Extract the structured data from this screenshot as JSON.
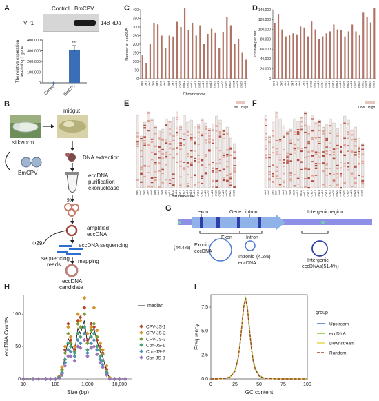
{
  "panels": {
    "a": "A",
    "b": "B",
    "c": "C",
    "d": "D",
    "e": "E",
    "f": "F",
    "g": "G",
    "h": "H",
    "i": "I"
  },
  "panel_a": {
    "blot_label": "VP1",
    "lanes": [
      "Control",
      "BmCPV"
    ],
    "size_marker": "148 kDa",
    "chart_data": {
      "type": "bar",
      "categories": [
        "Control",
        "BmCPV"
      ],
      "values": [
        0,
        310000
      ],
      "ylabel": "The relative expression level of vp1 gene",
      "ylim": [
        0,
        400000
      ],
      "yticks": [
        "0",
        "100,000",
        "200,000",
        "300,000",
        "400,000"
      ],
      "significance": "***",
      "bar_color": "#3a6fb7"
    }
  },
  "panel_b": {
    "silkworm": "silkworm",
    "virus": "BmCPV",
    "midgut": "midgut",
    "step1": "DNA extraction",
    "step2a": "eccDNA",
    "step2b": "purification",
    "step2c": "exonuclease",
    "step3a": "amplified",
    "step3b": "eccDNA",
    "phi": "Φ29",
    "step4": "eccDNA sequencing",
    "reads_a": "sequencing",
    "reads_b": "reads",
    "mapping": "mapping",
    "cand_a": "eccDNA",
    "cand_b": "candidate"
  },
  "panel_c": {
    "chart_data": {
      "type": "bar",
      "ylabel": "Number of eccDNA",
      "xlabel": "Chromosome",
      "ylim": [
        0,
        400
      ],
      "yticks": [
        "0",
        "50",
        "100",
        "150",
        "200",
        "250",
        "300",
        "350",
        "400"
      ],
      "categories": [
        "chr1",
        "chr2",
        "chr3",
        "chr4",
        "chr5",
        "chr6",
        "chr7",
        "chr8",
        "chr9",
        "chr10",
        "chr11",
        "chr12",
        "chr13",
        "chr14",
        "chr15",
        "chr16",
        "chr17",
        "chr18",
        "chr19",
        "chr20",
        "chr21",
        "chr22",
        "chr23",
        "chr24",
        "chr25",
        "chr26",
        "chr27",
        "chr28"
      ],
      "values": [
        140,
        90,
        200,
        320,
        315,
        250,
        180,
        250,
        245,
        330,
        300,
        410,
        280,
        320,
        250,
        310,
        200,
        260,
        290,
        265,
        180,
        270,
        360,
        310,
        200,
        230,
        150,
        110
      ]
    }
  },
  "panel_d": {
    "chart_data": {
      "type": "bar",
      "ylabel": "eccDNA per Mb",
      "ylim": [
        0,
        140000
      ],
      "yticks": [
        "0",
        "20,000",
        "40,000",
        "60,000",
        "80,000",
        "100,000",
        "120,000",
        "140,000"
      ],
      "categories": [
        "chr1",
        "chr2",
        "chr3",
        "chr4",
        "chr5",
        "chr6",
        "chr7",
        "chr8",
        "chr9",
        "chr10",
        "chr11",
        "chr12",
        "chr13",
        "chr14",
        "chr15",
        "chr16",
        "chr17",
        "chr18",
        "chr19",
        "chr20",
        "chr21",
        "chr22",
        "chr23",
        "chr24",
        "chr25",
        "chr26",
        "chr27",
        "chr28"
      ],
      "values": [
        112000,
        130000,
        100000,
        86000,
        88000,
        92000,
        90000,
        106000,
        104000,
        86000,
        116000,
        100000,
        80000,
        86000,
        92000,
        96000,
        110000,
        100000,
        98000,
        86000,
        96000,
        110000,
        96000,
        88000,
        134000,
        126000,
        114000,
        146000
      ]
    }
  },
  "panel_e": {
    "xlabel": "Chromosome",
    "legend_low": "Low",
    "legend_high": "High"
  },
  "panel_f": {
    "legend_low": "Low",
    "legend_high": "High"
  },
  "panel_g": {
    "exon": "exon",
    "gene": "Gene",
    "intron": "intron",
    "intergenic": "Intergenic region",
    "exon2": "Exon",
    "intron2": "Intron",
    "exonic_pct": "(44.4%)",
    "exonic_a": "Exonic",
    "exonic_b": "eccDNA",
    "intronic_a": "Intronic",
    "intronic_b": "eccDNA",
    "intronic_pct": "(4.2%)",
    "intergenic_a": "Intergenic",
    "intergenic_b": "eccDNAs(51.4%)"
  },
  "panel_h": {
    "chart_data": {
      "type": "scatter",
      "xlabel": "Size (bp)",
      "ylabel": "eccDNA Counts",
      "xscale": "log",
      "xticks": [
        "10",
        "100",
        "1,000",
        "10,000"
      ],
      "yticks": [
        "0",
        "50",
        "100"
      ],
      "ylim": [
        0,
        130
      ],
      "legend_placement": "right",
      "median_label": "median",
      "x": [
        10,
        20,
        30,
        50,
        70,
        100,
        130,
        160,
        200,
        250,
        300,
        400,
        500,
        600,
        800,
        1000,
        1300,
        1600,
        2000,
        2500,
        3000,
        4000,
        5000,
        7000,
        10000,
        15000
      ],
      "series": [
        {
          "name": "CPV-JS-1",
          "color": "#b5472f",
          "values": [
            0,
            0,
            0,
            0,
            0,
            0,
            3,
            15,
            45,
            85,
            60,
            45,
            90,
            95,
            110,
            60,
            85,
            80,
            60,
            50,
            40,
            15,
            0,
            0,
            0,
            0
          ]
        },
        {
          "name": "CPV-JS-2",
          "color": "#d4962c",
          "values": [
            0,
            0,
            0,
            0,
            0,
            0,
            4,
            18,
            50,
            80,
            65,
            50,
            100,
            90,
            125,
            70,
            80,
            110,
            75,
            55,
            45,
            20,
            2,
            0,
            0,
            0
          ]
        },
        {
          "name": "CPV-JS-3",
          "color": "#7d9c3a",
          "values": [
            0,
            0,
            0,
            0,
            0,
            0,
            3,
            14,
            40,
            70,
            55,
            42,
            85,
            80,
            100,
            55,
            75,
            85,
            65,
            45,
            38,
            12,
            0,
            0,
            0,
            0
          ]
        },
        {
          "name": "Con-JS-1",
          "color": "#4ba07c",
          "values": [
            0,
            0,
            0,
            0,
            0,
            0,
            2,
            10,
            30,
            55,
            50,
            40,
            70,
            65,
            80,
            45,
            65,
            70,
            50,
            35,
            28,
            10,
            0,
            0,
            0,
            0
          ]
        },
        {
          "name": "Con-JS-2",
          "color": "#4e8fb5",
          "values": [
            0,
            0,
            0,
            0,
            0,
            0,
            2,
            8,
            25,
            45,
            42,
            35,
            60,
            55,
            70,
            40,
            55,
            60,
            45,
            30,
            22,
            8,
            0,
            0,
            0,
            0
          ]
        },
        {
          "name": "Con-JS-3",
          "color": "#9a73b8",
          "values": [
            0,
            0,
            0,
            0,
            0,
            0,
            1,
            6,
            20,
            35,
            35,
            28,
            50,
            48,
            60,
            35,
            48,
            50,
            38,
            25,
            18,
            6,
            0,
            0,
            0,
            0
          ]
        }
      ],
      "median": [
        0,
        0,
        0,
        0,
        0,
        0,
        2,
        12,
        35,
        62,
        55,
        42,
        78,
        70,
        90,
        55,
        72,
        78,
        58,
        42,
        34,
        12,
        0,
        0,
        0,
        0
      ]
    }
  },
  "panel_i": {
    "chart_data": {
      "type": "line",
      "xlabel": "GC content",
      "ylabel": "Frequency",
      "xticks": [
        "0",
        "25",
        "50",
        "75",
        "100"
      ],
      "yticks": [
        "0.0",
        "2.5",
        "5.0",
        "7.5"
      ],
      "xlim": [
        0,
        100
      ],
      "ylim": [
        0,
        8.8
      ],
      "legend_title": "group",
      "legend_placement": "right",
      "x": [
        0,
        5,
        10,
        15,
        20,
        25,
        28,
        30,
        32,
        34,
        36,
        38,
        40,
        42,
        44,
        46,
        50,
        55,
        60,
        70,
        80,
        90,
        100
      ],
      "series": [
        {
          "name": "Upstream",
          "color": "#3e6fcf",
          "dash": "",
          "values": [
            0,
            0,
            0.02,
            0.05,
            0.2,
            0.8,
            2.0,
            3.4,
            5.4,
            7.5,
            8.4,
            7.3,
            5.2,
            3.2,
            1.8,
            1.0,
            0.3,
            0.08,
            0.02,
            0,
            0,
            0,
            0
          ]
        },
        {
          "name": "eccDNA",
          "color": "#7fc232",
          "dash": "",
          "values": [
            0,
            0,
            0.02,
            0.05,
            0.22,
            0.85,
            2.1,
            3.5,
            5.5,
            7.6,
            8.5,
            7.4,
            5.3,
            3.3,
            1.9,
            1.1,
            0.35,
            0.1,
            0.03,
            0,
            0,
            0,
            0
          ]
        },
        {
          "name": "Downstream",
          "color": "#e3d84a",
          "dash": "",
          "values": [
            0,
            0,
            0.02,
            0.05,
            0.2,
            0.8,
            2.0,
            3.4,
            5.4,
            7.5,
            8.4,
            7.3,
            5.2,
            3.2,
            1.8,
            1.0,
            0.3,
            0.08,
            0.02,
            0,
            0,
            0,
            0
          ]
        },
        {
          "name": "Random",
          "color": "#a0412f",
          "dash": "4,2",
          "values": [
            0,
            0,
            0.02,
            0.05,
            0.2,
            0.8,
            2.0,
            3.4,
            5.4,
            7.5,
            8.4,
            7.3,
            5.2,
            3.2,
            1.8,
            1.0,
            0.3,
            0.08,
            0.02,
            0,
            0,
            0,
            0
          ]
        }
      ]
    }
  }
}
